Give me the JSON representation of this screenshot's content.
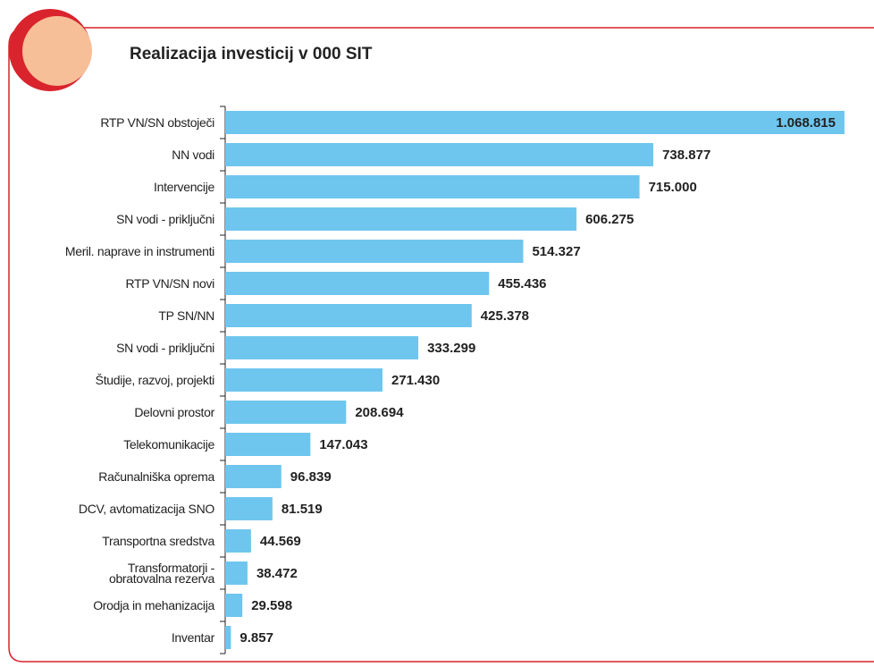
{
  "chart_data": {
    "type": "hbar",
    "title": "Realizacija investicij v 000 SIT",
    "categories": [
      "RTP VN/SN obstoječi",
      "NN vodi",
      "Intervencije",
      "SN vodi - priključni",
      "Meril. naprave in instrumenti",
      "RTP VN/SN novi",
      "TP SN/NN",
      "SN vodi - priključni",
      "Študije, razvoj, projekti",
      "Delovni prostor",
      "Telekomunikacije",
      "Računalniška oprema",
      "DCV, avtomatizacija SNO",
      "Transportna sredstva",
      "Transformatorji -\nobratovalna rezerva",
      "Orodja in mehanizacija",
      "Inventar"
    ],
    "values": [
      1068815,
      738877,
      715000,
      606275,
      514327,
      455436,
      425378,
      333299,
      271430,
      208694,
      147043,
      96839,
      81519,
      44569,
      38472,
      29598,
      9857
    ],
    "value_labels": [
      "1.068.815",
      "738.877",
      "715.000",
      "606.275",
      "514.327",
      "455.436",
      "425.378",
      "333.299",
      "271.430",
      "208.694",
      "147.043",
      "96.839",
      "81.519",
      "44.569",
      "38.472",
      "29.598",
      "9.857"
    ],
    "color": "#6ec6ee"
  }
}
